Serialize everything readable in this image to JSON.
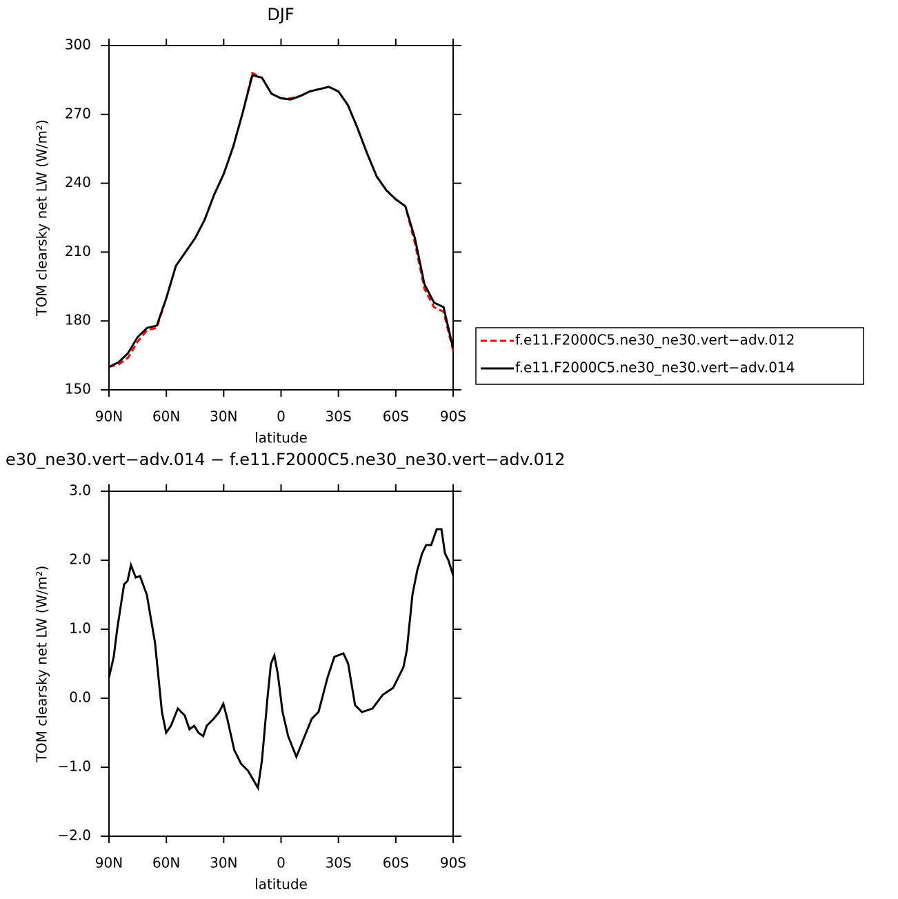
{
  "chart_data": [
    {
      "type": "line",
      "title": "DJF",
      "xlabel": "latitude",
      "ylabel": "TOM clearsky net LW (W/m²)",
      "x": [
        90,
        85,
        80,
        75,
        70,
        65,
        60,
        55,
        50,
        45,
        40,
        35,
        30,
        25,
        20,
        15,
        10,
        5,
        0,
        -5,
        -10,
        -15,
        -20,
        -25,
        -30,
        -35,
        -40,
        -45,
        -50,
        -55,
        -60,
        -65,
        -70,
        -75,
        -80,
        -85,
        -90
      ],
      "series": [
        {
          "name": "f.e11.F2000C5.ne30_ne30.vert−adv.012",
          "color": "#ff0000",
          "line_style": "dashed",
          "values": [
            160,
            161,
            164,
            171,
            176,
            177,
            190,
            204,
            210,
            216,
            224,
            235,
            244,
            256,
            271,
            288,
            286,
            279,
            277,
            277,
            278,
            280,
            281,
            282,
            280,
            274,
            264,
            253,
            243,
            237,
            233,
            230,
            214,
            194,
            186,
            184,
            167
          ]
        },
        {
          "name": "f.e11.F2000C5.ne30_ne30.vert−adv.014",
          "color": "#000000",
          "line_style": "solid",
          "values": [
            160,
            162,
            166,
            173,
            177,
            178,
            190,
            204,
            210,
            216,
            224,
            235,
            244,
            256,
            271,
            287,
            286,
            279,
            277,
            276.5,
            278,
            280,
            281,
            282,
            280,
            274,
            264,
            253,
            243,
            237,
            233,
            230,
            216,
            196,
            188,
            186,
            168
          ]
        }
      ],
      "xlim": [
        90,
        -90
      ],
      "ylim": [
        150,
        300
      ],
      "xticks": [
        {
          "value": 90,
          "label": "90N"
        },
        {
          "value": 60,
          "label": "60N"
        },
        {
          "value": 30,
          "label": "30N"
        },
        0,
        {
          "value": -30,
          "label": "30S"
        },
        {
          "value": -60,
          "label": "60S"
        },
        {
          "value": -90,
          "label": "90S"
        }
      ],
      "yticks": [
        150,
        180,
        210,
        240,
        270,
        300
      ]
    },
    {
      "type": "line",
      "title": "e30_ne30.vert−adv.014 − f.e11.F2000C5.ne30_ne30.vert−adv.012",
      "xlabel": "latitude",
      "ylabel": "TOM clearsky net LW (W/m²)",
      "x": [
        90,
        87.5,
        85.7,
        82.1,
        80.3,
        78.5,
        76.0,
        73.8,
        70.2,
        65.9,
        62.3,
        60.1,
        57.6,
        54.0,
        50.4,
        47.9,
        45.4,
        43.2,
        40.7,
        38.9,
        35.3,
        32.4,
        30.2,
        28.1,
        24.5,
        20.9,
        17.3,
        12.1,
        10.0,
        7.1,
        5.3,
        3.5,
        1.7,
        -0.8,
        -3.7,
        -8.0,
        -11.6,
        -16.0,
        -19.6,
        -24.3,
        -27.9,
        -32.6,
        -35.1,
        -38.7,
        -42.3,
        -47.8,
        -53.2,
        -58.6,
        -64.0,
        -65.8,
        -68.7,
        -71.2,
        -73.8,
        -75.9,
        -78.5,
        -81.4,
        -83.9,
        -85.7,
        -87.5,
        -90
      ],
      "series": [
        {
          "color": "#000000",
          "line_style": "solid",
          "values": [
            0.3,
            0.6,
            1.0,
            1.65,
            1.7,
            1.93,
            1.75,
            1.77,
            1.5,
            0.8,
            -0.2,
            -0.5,
            -0.4,
            -0.15,
            -0.25,
            -0.45,
            -0.4,
            -0.5,
            -0.55,
            -0.4,
            -0.3,
            -0.2,
            -0.08,
            -0.3,
            -0.75,
            -0.95,
            -1.05,
            -1.3,
            -0.9,
            0.0,
            0.5,
            0.62,
            0.35,
            -0.2,
            -0.55,
            -0.85,
            -0.6,
            -0.3,
            -0.2,
            0.3,
            0.6,
            0.65,
            0.5,
            -0.1,
            -0.2,
            -0.15,
            0.05,
            0.15,
            0.45,
            0.7,
            1.5,
            1.85,
            2.1,
            2.22,
            2.22,
            2.45,
            2.45,
            2.1,
            2.0,
            1.78
          ]
        }
      ],
      "xlim": [
        90,
        -90
      ],
      "ylim": [
        -2,
        3
      ],
      "xticks": [
        {
          "value": 90,
          "label": "90N"
        },
        {
          "value": 60,
          "label": "60N"
        },
        {
          "value": 30,
          "label": "30N"
        },
        0,
        {
          "value": -30,
          "label": "30S"
        },
        {
          "value": -60,
          "label": "60S"
        },
        {
          "value": -90,
          "label": "90S"
        }
      ],
      "yticks": [
        {
          "value": -2,
          "label": "−2.0"
        },
        {
          "value": -1,
          "label": "−1.0"
        },
        {
          "value": 0,
          "label": "0.0"
        },
        {
          "value": 1,
          "label": "1.0"
        },
        {
          "value": 2,
          "label": "2.0"
        },
        {
          "value": 3,
          "label": "3.0"
        }
      ]
    }
  ]
}
